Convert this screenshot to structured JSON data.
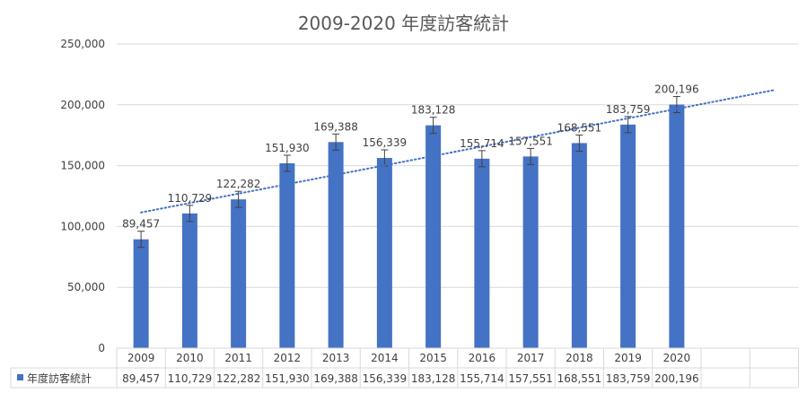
{
  "chart_data": {
    "type": "bar",
    "title": "2009-2020 年度訪客統計",
    "categories": [
      "2009",
      "2010",
      "2011",
      "2012",
      "2013",
      "2014",
      "2015",
      "2016",
      "2017",
      "2018",
      "2019",
      "2020"
    ],
    "series": [
      {
        "name": "年度訪客統計",
        "color": "#4472C4",
        "values": [
          89457,
          110729,
          122282,
          151930,
          169388,
          156339,
          183128,
          155714,
          157551,
          168551,
          183759,
          200196
        ],
        "labels": [
          "89,457",
          "110,729",
          "122,282",
          "151,930",
          "169,388",
          "156,339",
          "183,128",
          "155,714",
          "157,551",
          "168,551",
          "183,759",
          "200,196"
        ]
      }
    ],
    "yticks": [
      "0",
      "50,000",
      "100,000",
      "150,000",
      "200,000",
      "250,000"
    ],
    "ylim": [
      0,
      250000
    ],
    "grid": true,
    "error_bars": true,
    "trendline": "linear dotted",
    "data_table": true
  }
}
